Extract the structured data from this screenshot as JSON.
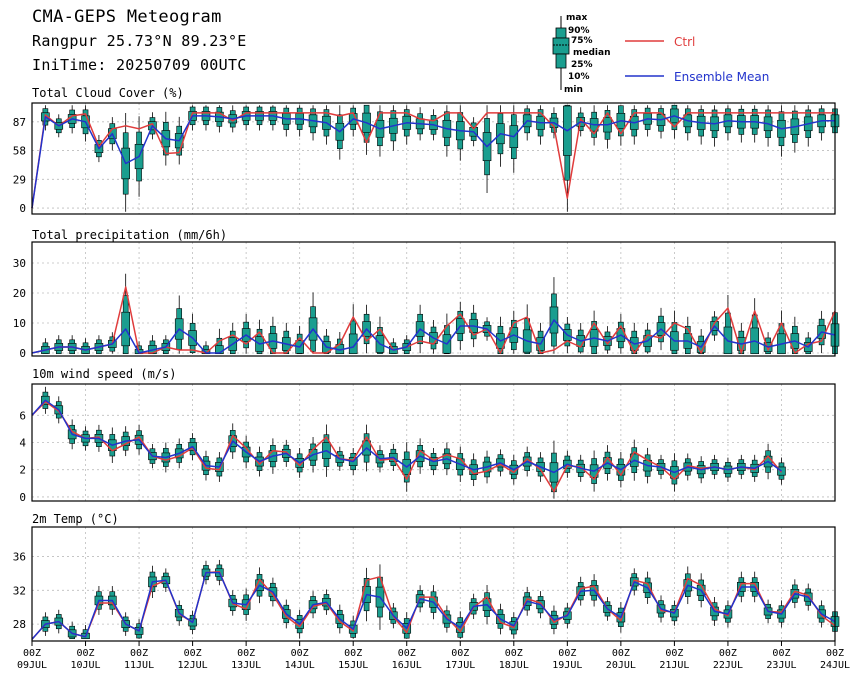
{
  "header": {
    "title": "CMA-GEPS Meteogram",
    "location": "Rangpur 25.73°N 89.23°E",
    "init_time": "IniTime: 20250709 00UTC"
  },
  "legend": {
    "box_labels": [
      "max",
      "90%",
      "75%",
      "median",
      "25%",
      "10%",
      "min"
    ],
    "ctrl_label": "Ctrl",
    "mean_label": "Ensemble Mean",
    "ctrl_color": "#e03c3c",
    "mean_color": "#2233cc",
    "box_color": "#1a9e8f"
  },
  "chart_data": {
    "type": "line",
    "x_tick_top": [
      "00Z",
      "00Z",
      "00Z",
      "00Z",
      "00Z",
      "00Z",
      "00Z",
      "00Z",
      "00Z",
      "00Z",
      "00Z",
      "00Z",
      "00Z",
      "00Z",
      "00Z",
      "00Z"
    ],
    "x_tick_bottom": [
      "09JUL",
      "10JUL",
      "11JUL",
      "12JUL",
      "13JUL",
      "14JUL",
      "15JUL",
      "16JUL",
      "17JUL",
      "18JUL",
      "19JUL",
      "20JUL",
      "21JUL",
      "22JUL",
      "23JUL",
      "24JUL"
    ],
    "time_step_hours": 6,
    "panels": [
      {
        "title": "Total Cloud Cover (%)",
        "ylim": [
          -6,
          106
        ],
        "yticks": [
          0,
          29,
          58,
          87
        ],
        "series": [
          {
            "name": "Ctrl",
            "values": [
              0,
              94,
              83,
              93,
              95,
              62,
              80,
              83,
              80,
              85,
              55,
              56,
              96,
              96,
              96,
              88,
              96,
              96,
              96,
              96,
              96,
              96,
              96,
              93,
              96,
              66,
              96,
              96,
              96,
              90,
              88,
              96,
              96,
              80,
              96,
              96,
              96,
              96,
              96,
              82,
              10,
              90,
              75,
              96,
              75,
              96,
              96,
              96,
              82,
              96,
              96,
              96,
              96,
              96,
              96,
              96,
              96,
              96,
              96,
              96,
              96
            ]
          },
          {
            "name": "Ensemble Mean",
            "values": [
              0,
              92,
              83,
              90,
              87,
              60,
              75,
              45,
              52,
              83,
              70,
              68,
              93,
              93,
              92,
              90,
              93,
              93,
              93,
              90,
              90,
              88,
              86,
              77,
              90,
              86,
              80,
              83,
              86,
              85,
              84,
              80,
              78,
              77,
              62,
              75,
              72,
              88,
              86,
              86,
              78,
              87,
              84,
              84,
              88,
              86,
              90,
              89,
              93,
              88,
              86,
              85,
              88,
              87,
              87,
              85,
              80,
              82,
              85,
              88,
              88
            ]
          }
        ]
      },
      {
        "title": "Total precipitation (mm/6h)",
        "ylim": [
          -1,
          37
        ],
        "yticks": [
          0,
          10,
          20,
          30
        ],
        "series": [
          {
            "name": "Ctrl",
            "values": [
              0,
              1,
              2,
              2,
              1,
              2,
              3,
              22,
              0,
              0,
              2,
              1,
              1,
              0,
              4,
              6,
              3,
              7,
              0,
              0,
              5,
              0,
              0,
              3,
              12,
              4,
              8,
              1,
              2,
              4,
              3,
              9,
              13,
              6,
              8,
              0,
              10,
              12,
              0,
              1,
              4,
              2,
              10,
              3,
              9,
              0,
              6,
              5,
              10,
              8,
              0,
              10,
              15,
              0,
              14,
              1,
              10,
              0,
              3,
              4,
              14
            ]
          },
          {
            "name": "Ensemble Mean",
            "values": [
              0,
              1,
              2,
              2,
              1,
              2,
              3,
              8,
              0,
              1,
              2,
              8,
              5,
              0,
              0,
              3,
              6,
              3,
              4,
              3,
              2,
              8,
              2,
              1,
              2,
              8,
              3,
              1,
              2,
              8,
              5,
              3,
              9,
              9,
              8,
              4,
              6,
              4,
              3,
              11,
              6,
              4,
              5,
              4,
              6,
              3,
              4,
              8,
              4,
              4,
              2,
              9,
              4,
              3,
              4,
              2,
              3,
              4,
              2,
              7,
              6
            ]
          }
        ]
      },
      {
        "title": "10m wind speed (m/s)",
        "ylim": [
          -0.3,
          8.3
        ],
        "yticks": [
          0,
          2,
          4,
          6
        ],
        "series": [
          {
            "name": "Ctrl",
            "values": [
              6.0,
              7.0,
              6.3,
              4.8,
              4.3,
              4.4,
              3.4,
              3.9,
              4.4,
              3.0,
              2.7,
              3.0,
              3.6,
              2.1,
              2.0,
              4.5,
              3.6,
              2.4,
              3.4,
              3.3,
              2.3,
              3.5,
              4.4,
              2.8,
              2.7,
              4.4,
              2.7,
              2.8,
              1.3,
              3.4,
              2.7,
              3.1,
              2.8,
              1.7,
              1.9,
              2.4,
              1.8,
              2.8,
              2.0,
              0.4,
              2.3,
              2.2,
              1.3,
              2.9,
              1.6,
              3.3,
              2.7,
              2.2,
              1.3,
              2.3,
              2.1,
              2.2,
              2.0,
              2.2,
              2.0,
              3.0,
              1.8
            ]
          },
          {
            "name": "Ensemble Mean",
            "values": [
              6.0,
              7.1,
              6.4,
              4.6,
              4.3,
              4.3,
              3.8,
              4.1,
              4.2,
              3.0,
              2.9,
              3.2,
              3.7,
              2.3,
              2.2,
              4.1,
              3.3,
              2.6,
              3.0,
              3.2,
              2.5,
              3.1,
              3.4,
              2.8,
              2.6,
              3.6,
              2.8,
              2.9,
              2.2,
              3.0,
              2.6,
              2.8,
              2.4,
              2.0,
              2.2,
              2.5,
              2.0,
              2.6,
              2.2,
              1.8,
              2.4,
              2.1,
              1.9,
              2.5,
              2.0,
              2.7,
              2.3,
              2.2,
              1.8,
              2.2,
              2.0,
              2.2,
              2.0,
              2.2,
              2.1,
              2.6,
              1.9
            ]
          }
        ]
      },
      {
        "title": "2m Temp (°C)",
        "ylim": [
          26,
          39.5
        ],
        "yticks": [
          28,
          32,
          36
        ],
        "series": [
          {
            "name": "Ctrl",
            "values": [
              26.2,
              28.0,
              28.3,
              26.9,
              26.5,
              30.5,
              30.5,
              28.0,
              27.2,
              32.5,
              33.2,
              29.2,
              28.2,
              34.1,
              34.2,
              30.4,
              29.8,
              33.3,
              31.5,
              28.9,
              27.7,
              30.1,
              30.5,
              28.3,
              27.2,
              33.2,
              33.6,
              28.9,
              27.0,
              31.2,
              31.2,
              28.8,
              27.1,
              30.0,
              31.2,
              28.2,
              27.6,
              31.0,
              30.5,
              28.2,
              29.1,
              32.2,
              32.5,
              29.8,
              28.4,
              33.2,
              32.8,
              29.6,
              29.4,
              33.4,
              32.6,
              29.8,
              29.0,
              32.8,
              32.8,
              29.5,
              29.4,
              31.9,
              31.4,
              29.0,
              27.8
            ]
          },
          {
            "name": "Ensemble Mean",
            "values": [
              26.2,
              28.0,
              28.3,
              26.9,
              26.5,
              30.8,
              30.8,
              28.0,
              27.2,
              33.0,
              33.2,
              29.3,
              28.2,
              34.1,
              34.1,
              30.5,
              30.3,
              32.6,
              31.8,
              29.2,
              28.0,
              30.3,
              30.6,
              28.6,
              27.4,
              31.5,
              31.2,
              29.0,
              27.5,
              31.0,
              30.6,
              28.6,
              27.6,
              30.1,
              30.3,
              28.6,
              27.8,
              30.7,
              30.3,
              28.5,
              29.0,
              31.9,
              32.0,
              29.8,
              28.8,
              33.0,
              32.3,
              29.8,
              29.3,
              32.6,
              32.0,
              29.5,
              29.2,
              32.4,
              32.4,
              29.5,
              29.2,
              31.6,
              31.2,
              29.2,
              28.3
            ]
          }
        ]
      }
    ]
  }
}
